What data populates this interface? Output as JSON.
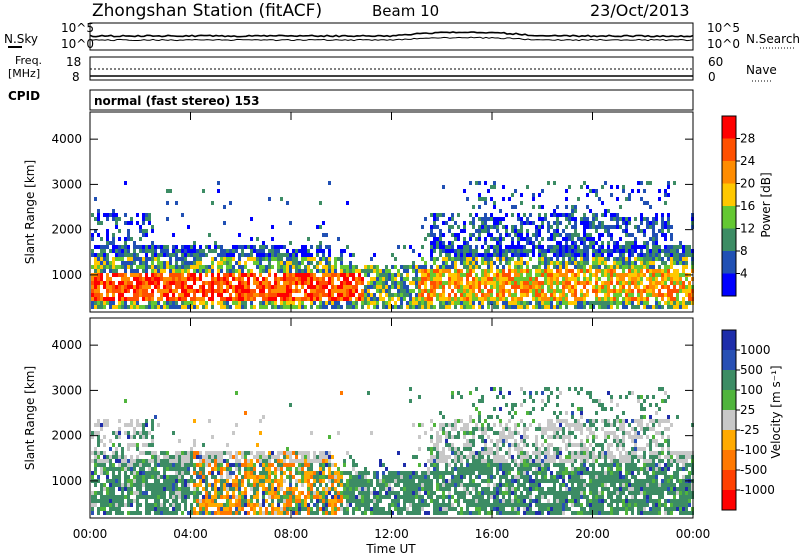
{
  "header": {
    "station": "Zhongshan Station (fitACF)",
    "beam": "Beam 10",
    "date": "23/Oct/2013"
  },
  "strips": {
    "nsky_label": "N.Sky",
    "nsearch_label": "N.Search",
    "noise_ticks": [
      "10^5",
      "10^0"
    ],
    "freq_label_line1": "Freq.",
    "freq_label_line2": "[MHz]",
    "freq_ticks": [
      "18",
      "8"
    ],
    "nave_label": "Nave",
    "nave_ticks": [
      "60",
      "0"
    ],
    "cpid_label": "CPID",
    "cpid_text": "normal (fast stereo) 153"
  },
  "time_axis": {
    "title": "Time UT",
    "ticks": [
      "00:00",
      "04:00",
      "08:00",
      "12:00",
      "16:00",
      "20:00",
      "00:00"
    ]
  },
  "chart_data": [
    {
      "type": "heatmap",
      "title": "",
      "ylabel": "Slant Range [km]",
      "ylim": [
        180,
        4600
      ],
      "yticks": [
        1000,
        2000,
        3000,
        4000
      ],
      "xlim_hours": [
        0,
        24
      ],
      "colorbar": {
        "label": "Power [dB]",
        "ticks": [
          "4",
          "8",
          "12",
          "16",
          "20",
          "24",
          "28"
        ],
        "colors": [
          "#0000ff",
          "#2050b4",
          "#3c8c64",
          "#64c832",
          "#ffc800",
          "#ff8c00",
          "#ff5000",
          "#ff0000"
        ]
      }
    },
    {
      "type": "heatmap",
      "title": "",
      "ylabel": "Slant Range [km]",
      "ylim": [
        180,
        4600
      ],
      "yticks": [
        1000,
        2000,
        3000,
        4000
      ],
      "xlim_hours": [
        0,
        24
      ],
      "colorbar": {
        "label": "Velocity [m s⁻¹]",
        "ticks": [
          "1000",
          "500",
          "100",
          "25",
          "-25",
          "-100",
          "-500",
          "-1000"
        ],
        "colors": [
          "#1e2daa",
          "#2850b4",
          "#3c8c64",
          "#50b43c",
          "#c8c8c8",
          "#ffaa00",
          "#ff7800",
          "#ff4000",
          "#ff0000"
        ]
      }
    }
  ]
}
